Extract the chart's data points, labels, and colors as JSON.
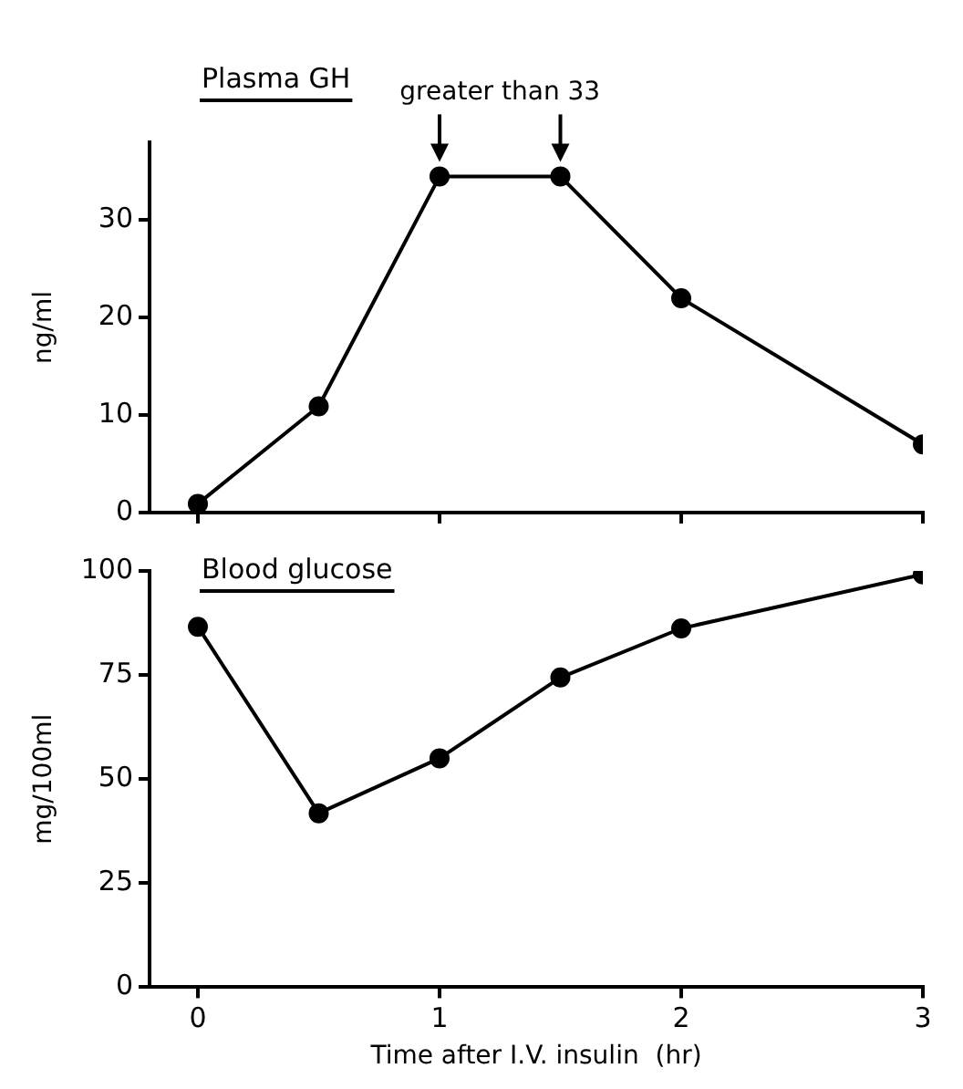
{
  "chart_data": [
    {
      "type": "line",
      "title": "Plasma GH",
      "ylabel": "ng/ml",
      "x": [
        0,
        0.5,
        1,
        1.5,
        2,
        3
      ],
      "values": [
        0.9,
        10.9,
        34.5,
        34.5,
        22.0,
        7.0
      ],
      "color": "#000000",
      "marker": "circle",
      "xlim": [
        -0.2,
        3
      ],
      "xticks": [
        0,
        1,
        2,
        3
      ],
      "ylim": [
        0,
        38
      ],
      "yticks": [
        0,
        10,
        20,
        30
      ],
      "tick_labels": "y",
      "grid": false,
      "annotations": [
        {
          "text": "greater than 33",
          "x": 1.25,
          "y": 34.5
        }
      ]
    },
    {
      "type": "line",
      "title": "Blood glucose",
      "ylabel": "mg/100ml",
      "xlabel": "Time after I.V. insulin  (hr)",
      "x": [
        0,
        0.5,
        1,
        1.5,
        2,
        3
      ],
      "values": [
        86.6,
        41.8,
        55.0,
        74.4,
        86.2,
        99.2
      ],
      "color": "#000000",
      "marker": "circle",
      "xlim": [
        -0.2,
        3
      ],
      "xticks": [
        0,
        1,
        2,
        3
      ],
      "ylim": [
        0,
        100
      ],
      "yticks": [
        0,
        25,
        50,
        75,
        100
      ],
      "grid": false
    }
  ]
}
